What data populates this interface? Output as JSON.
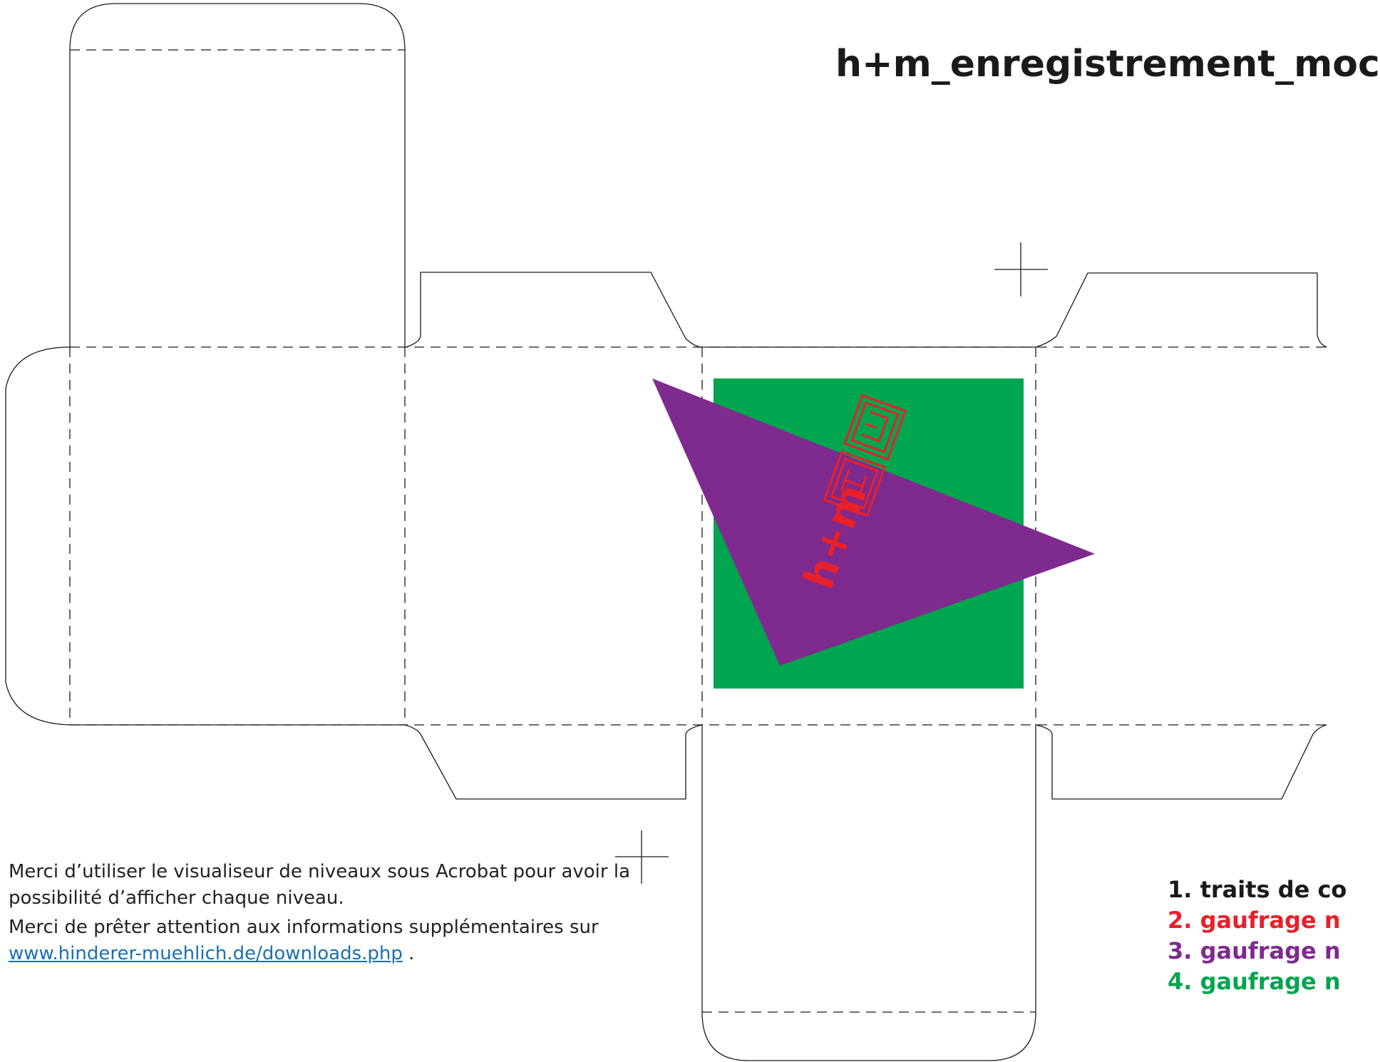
{
  "title": "h+m_enregistrement_moc",
  "colors": {
    "cut_line": "#1a1a1a",
    "emboss_red": "#e8202a",
    "emboss_purple": "#7e2a8e",
    "emboss_green": "#00a54f",
    "link": "#1a6fb5"
  },
  "logo_text": "h+m",
  "notes": {
    "line1": "Merci d’utiliser le visualiseur de niveaux sous Acrobat pour avoir la possibilité d’afficher chaque niveau.",
    "line2_prefix": "Merci de prêter attention aux informations supplémentaires sur",
    "link": "www.hinderer-muehlich.de/downloads.php",
    "line2_suffix": " ."
  },
  "legend": [
    {
      "label": "1. traits de co",
      "color": "#1a1a1a"
    },
    {
      "label": "2. gaufrage n",
      "color": "#e8202a"
    },
    {
      "label": "3. gaufrage n",
      "color": "#7e2a8e"
    },
    {
      "label": "4. gaufrage n",
      "color": "#00a54f"
    }
  ]
}
